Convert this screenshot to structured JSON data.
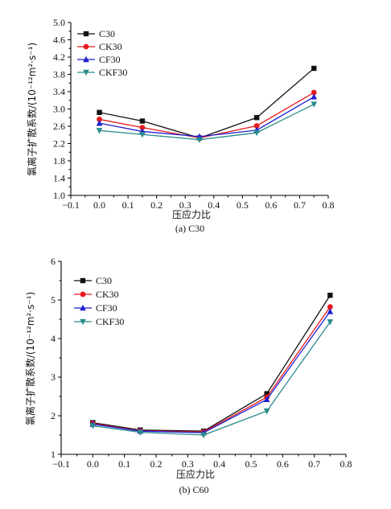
{
  "figure": {
    "colors": {
      "C30": "#111111",
      "CK30": "#e8191c",
      "CF30": "#1f1fd6",
      "CKF30": "#2a8c8c"
    },
    "markers": {
      "C30": "square",
      "CK30": "circle",
      "CF30": "triangle-up",
      "CKF30": "triangle-down"
    }
  },
  "chart_data": [
    {
      "type": "line",
      "caption": "(a) C30",
      "xlabel": "压应力比",
      "ylabel": "氯离子扩散系数/(10⁻¹²m²·s⁻¹)",
      "xlim": [
        -0.1,
        0.8
      ],
      "ylim": [
        1.0,
        5.0
      ],
      "xticks": [
        "−0.1",
        "0.0",
        "0.1",
        "0.2",
        "0.3",
        "0.4",
        "0.5",
        "0.6",
        "0.7",
        "0.8"
      ],
      "yticks": [
        "1.0",
        "1.4",
        "1.8",
        "2.2",
        "2.6",
        "3.0",
        "3.4",
        "3.8",
        "4.2",
        "4.6",
        "5.0"
      ],
      "x": [
        0.0,
        0.15,
        0.35,
        0.55,
        0.75
      ],
      "series": [
        {
          "name": "C30",
          "values": [
            2.92,
            2.72,
            2.33,
            2.8,
            3.94
          ]
        },
        {
          "name": "CK30",
          "values": [
            2.76,
            2.57,
            2.33,
            2.61,
            3.38
          ]
        },
        {
          "name": "CF30",
          "values": [
            2.67,
            2.48,
            2.36,
            2.51,
            3.28
          ]
        },
        {
          "name": "CKF30",
          "values": [
            2.5,
            2.41,
            2.29,
            2.45,
            3.11
          ]
        }
      ],
      "legend": "top-left"
    },
    {
      "type": "line",
      "caption": "(b) C60",
      "xlabel": "压应力比",
      "ylabel": "氯离子扩散系数/(10⁻¹²m²·s⁻¹)",
      "xlim": [
        -0.1,
        0.8
      ],
      "ylim": [
        1,
        6
      ],
      "xticks": [
        "−0.1",
        "0.0",
        "0.1",
        "0.2",
        "0.3",
        "0.4",
        "0.5",
        "0.6",
        "0.7",
        "0.8"
      ],
      "yticks": [
        "1",
        "2",
        "3",
        "4",
        "5",
        "6"
      ],
      "x": [
        0.0,
        0.15,
        0.35,
        0.55,
        0.75
      ],
      "series": [
        {
          "name": "C30",
          "values": [
            1.82,
            1.63,
            1.6,
            2.57,
            5.12
          ]
        },
        {
          "name": "CK30",
          "values": [
            1.8,
            1.61,
            1.58,
            2.48,
            4.82
          ]
        },
        {
          "name": "CF30",
          "values": [
            1.78,
            1.6,
            1.56,
            2.42,
            4.7
          ]
        },
        {
          "name": "CKF30",
          "values": [
            1.74,
            1.57,
            1.5,
            2.12,
            4.43
          ]
        }
      ],
      "legend": "top-left"
    }
  ]
}
